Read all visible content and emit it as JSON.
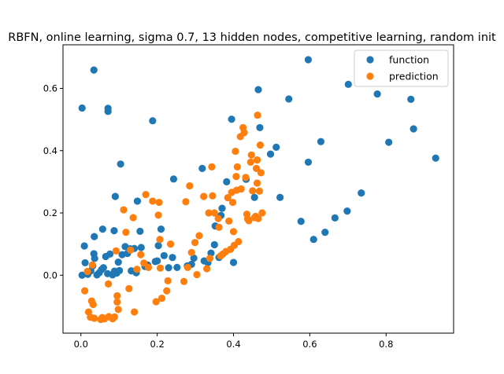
{
  "chart_data": {
    "type": "scatter",
    "title": "RBFN, online learning, sigma 0.7, 13 hidden nodes, competitive learning, random init",
    "xlabel": "",
    "ylabel": "",
    "xlim": [
      -0.047,
      0.977
    ],
    "ylim": [
      -0.186,
      0.74
    ],
    "xticks": [
      "0.0",
      "0.2",
      "0.4",
      "0.6",
      "0.8"
    ],
    "xtick_values": [
      0.0,
      0.2,
      0.4,
      0.6,
      0.8
    ],
    "yticks": [
      "0.0",
      "0.2",
      "0.4",
      "0.6"
    ],
    "ytick_values": [
      0.0,
      0.2,
      0.4,
      0.6
    ],
    "grid": false,
    "legend_position": "top-right",
    "series": [
      {
        "name": "function",
        "color": "#1f77b4",
        "points": [
          [
            0.003,
            0.537
          ],
          [
            0.034,
            0.659
          ],
          [
            0.071,
            0.536
          ],
          [
            0.071,
            0.526
          ],
          [
            0.188,
            0.496
          ],
          [
            0.104,
            0.357
          ],
          [
            0.09,
            0.253
          ],
          [
            0.009,
            0.094
          ],
          [
            0.035,
            0.124
          ],
          [
            0.034,
            0.069
          ],
          [
            0.011,
            0.04
          ],
          [
            0.003,
            0.0
          ],
          [
            0.018,
            0.003
          ],
          [
            0.026,
            0.014
          ],
          [
            0.031,
            0.03
          ],
          [
            0.036,
            0.054
          ],
          [
            0.042,
            0.001
          ],
          [
            0.048,
            0.008
          ],
          [
            0.054,
            0.018
          ],
          [
            0.057,
            0.148
          ],
          [
            0.059,
            0.024
          ],
          [
            0.065,
            0.06
          ],
          [
            0.07,
            0.005
          ],
          [
            0.076,
            0.068
          ],
          [
            0.083,
            0.001
          ],
          [
            0.087,
            0.143
          ],
          [
            0.088,
            0.013
          ],
          [
            0.094,
            0.007
          ],
          [
            0.098,
            0.042
          ],
          [
            0.101,
            0.015
          ],
          [
            0.108,
            0.066
          ],
          [
            0.116,
            0.092
          ],
          [
            0.122,
            0.07
          ],
          [
            0.129,
            0.085
          ],
          [
            0.132,
            0.014
          ],
          [
            0.14,
            0.086
          ],
          [
            0.145,
            0.008
          ],
          [
            0.148,
            0.238
          ],
          [
            0.155,
            0.141
          ],
          [
            0.158,
            0.089
          ],
          [
            0.168,
            0.028
          ],
          [
            0.175,
            0.033
          ],
          [
            0.195,
            0.044
          ],
          [
            0.2,
            0.046
          ],
          [
            0.203,
            0.095
          ],
          [
            0.21,
            0.148
          ],
          [
            0.218,
            0.063
          ],
          [
            0.23,
            0.024
          ],
          [
            0.24,
            0.057
          ],
          [
            0.243,
            0.309
          ],
          [
            0.252,
            0.025
          ],
          [
            0.279,
            0.03
          ],
          [
            0.29,
            0.035
          ],
          [
            0.296,
            0.055
          ],
          [
            0.318,
            0.343
          ],
          [
            0.323,
            0.046
          ],
          [
            0.333,
            0.04
          ],
          [
            0.341,
            0.071
          ],
          [
            0.35,
            0.098
          ],
          [
            0.352,
            0.158
          ],
          [
            0.362,
            0.057
          ],
          [
            0.367,
            0.192
          ],
          [
            0.37,
            0.215
          ],
          [
            0.382,
            0.3
          ],
          [
            0.395,
            0.501
          ],
          [
            0.4,
            0.041
          ],
          [
            0.433,
            0.308
          ],
          [
            0.455,
            0.25
          ],
          [
            0.465,
            0.596
          ],
          [
            0.469,
            0.474
          ],
          [
            0.497,
            0.389
          ],
          [
            0.512,
            0.411
          ],
          [
            0.522,
            0.25
          ],
          [
            0.545,
            0.566
          ],
          [
            0.577,
            0.173
          ],
          [
            0.596,
            0.692
          ],
          [
            0.596,
            0.363
          ],
          [
            0.61,
            0.115
          ],
          [
            0.629,
            0.429
          ],
          [
            0.64,
            0.138
          ],
          [
            0.666,
            0.184
          ],
          [
            0.698,
            0.206
          ],
          [
            0.701,
            0.613
          ],
          [
            0.735,
            0.264
          ],
          [
            0.777,
            0.582
          ],
          [
            0.807,
            0.427
          ],
          [
            0.865,
            0.565
          ],
          [
            0.872,
            0.47
          ],
          [
            0.93,
            0.376
          ]
        ]
      },
      {
        "name": "prediction",
        "color": "#ff7f0e",
        "points": [
          [
            0.01,
            -0.05
          ],
          [
            0.017,
            0.012
          ],
          [
            0.02,
            -0.118
          ],
          [
            0.025,
            -0.135
          ],
          [
            0.028,
            -0.083
          ],
          [
            0.03,
            0.033
          ],
          [
            0.032,
            -0.094
          ],
          [
            0.035,
            -0.138
          ],
          [
            0.052,
            -0.142
          ],
          [
            0.056,
            -0.136
          ],
          [
            0.062,
            -0.14
          ],
          [
            0.072,
            -0.028
          ],
          [
            0.073,
            -0.133
          ],
          [
            0.083,
            -0.14
          ],
          [
            0.088,
            -0.134
          ],
          [
            0.092,
            0.078
          ],
          [
            0.095,
            -0.066
          ],
          [
            0.095,
            -0.086
          ],
          [
            0.098,
            -0.11
          ],
          [
            0.112,
            0.21
          ],
          [
            0.118,
            0.138
          ],
          [
            0.126,
            -0.043
          ],
          [
            0.13,
            0.081
          ],
          [
            0.137,
            0.185
          ],
          [
            0.14,
            -0.118
          ],
          [
            0.147,
            0.019
          ],
          [
            0.157,
            0.066
          ],
          [
            0.165,
            0.039
          ],
          [
            0.17,
            0.259
          ],
          [
            0.177,
            0.025
          ],
          [
            0.188,
            0.238
          ],
          [
            0.197,
            -0.085
          ],
          [
            0.203,
            0.193
          ],
          [
            0.205,
            0.234
          ],
          [
            0.207,
            0.115
          ],
          [
            0.208,
            0.023
          ],
          [
            0.212,
            -0.074
          ],
          [
            0.225,
            -0.05
          ],
          [
            0.228,
            -0.018
          ],
          [
            0.235,
            0.1
          ],
          [
            0.27,
            -0.02
          ],
          [
            0.275,
            0.236
          ],
          [
            0.28,
            0.025
          ],
          [
            0.285,
            0.287
          ],
          [
            0.29,
            0.073
          ],
          [
            0.299,
            0.105
          ],
          [
            0.304,
            0.002
          ],
          [
            0.31,
            0.127
          ],
          [
            0.322,
            0.253
          ],
          [
            0.33,
            0.021
          ],
          [
            0.335,
            0.2
          ],
          [
            0.338,
            0.054
          ],
          [
            0.343,
            0.348
          ],
          [
            0.345,
            0.255
          ],
          [
            0.35,
            0.2
          ],
          [
            0.36,
            0.182
          ],
          [
            0.362,
            0.154
          ],
          [
            0.366,
            0.062
          ],
          [
            0.372,
            0.068
          ],
          [
            0.38,
            0.076
          ],
          [
            0.385,
            0.249
          ],
          [
            0.388,
            0.174
          ],
          [
            0.392,
            0.083
          ],
          [
            0.395,
            0.266
          ],
          [
            0.398,
            0.234
          ],
          [
            0.4,
            0.14
          ],
          [
            0.402,
            0.096
          ],
          [
            0.405,
            0.398
          ],
          [
            0.407,
            0.317
          ],
          [
            0.408,
            0.273
          ],
          [
            0.41,
            0.348
          ],
          [
            0.413,
            0.108
          ],
          [
            0.418,
            0.445
          ],
          [
            0.42,
            0.277
          ],
          [
            0.425,
            0.474
          ],
          [
            0.428,
            0.458
          ],
          [
            0.432,
            0.314
          ],
          [
            0.435,
            0.196
          ],
          [
            0.437,
            0.181
          ],
          [
            0.44,
            0.175
          ],
          [
            0.445,
            0.363
          ],
          [
            0.447,
            0.386
          ],
          [
            0.45,
            0.271
          ],
          [
            0.455,
            0.185
          ],
          [
            0.458,
            0.189
          ],
          [
            0.46,
            0.343
          ],
          [
            0.462,
            0.37
          ],
          [
            0.462,
            0.296
          ],
          [
            0.463,
            0.514
          ],
          [
            0.465,
            0.182
          ],
          [
            0.468,
            0.27
          ],
          [
            0.47,
            0.418
          ],
          [
            0.472,
            0.329
          ],
          [
            0.475,
            0.2
          ]
        ]
      }
    ]
  }
}
